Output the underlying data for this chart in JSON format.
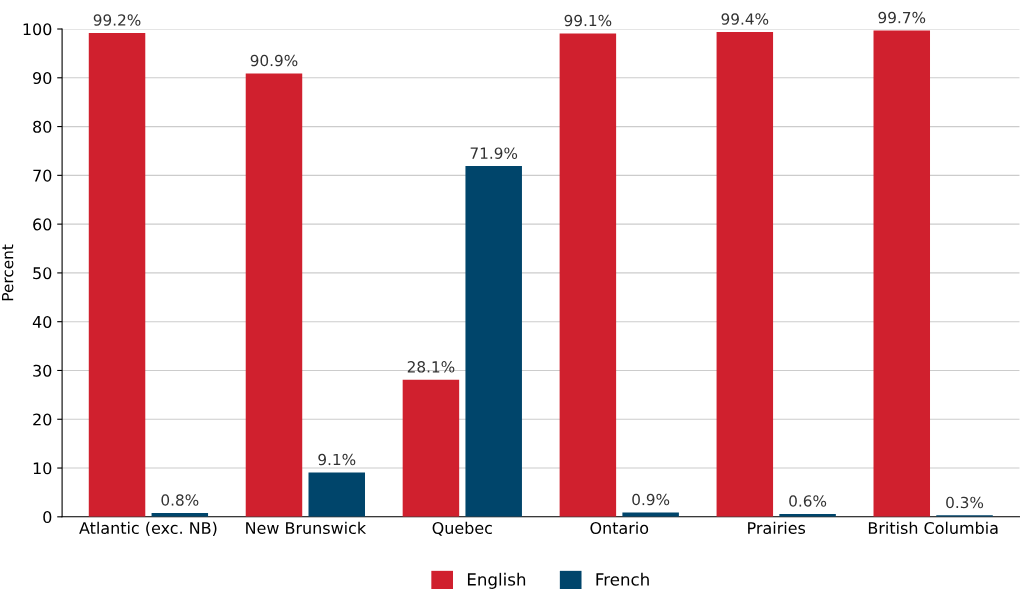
{
  "chart_data": {
    "type": "bar",
    "ylabel": "Percent",
    "categories": [
      "Atlantic (exc. NB)",
      "New Brunswick",
      "Quebec",
      "Ontario",
      "Prairies",
      "British Columbia"
    ],
    "series": [
      {
        "name": "English",
        "color": "#d0202e",
        "values": [
          99.2,
          90.9,
          28.1,
          99.1,
          99.4,
          99.7
        ],
        "value_labels": [
          "99.2%",
          "90.9%",
          "28.1%",
          "99.1%",
          "99.4%",
          "99.7%"
        ]
      },
      {
        "name": "French",
        "color": "#00456b",
        "values": [
          0.8,
          9.1,
          71.9,
          0.9,
          0.6,
          0.3
        ],
        "value_labels": [
          "0.8%",
          "9.1%",
          "71.9%",
          "0.9%",
          "0.6%",
          "0.3%"
        ]
      }
    ],
    "ylim": [
      0,
      100
    ],
    "yticks": [
      0,
      10,
      20,
      30,
      40,
      50,
      60,
      70,
      80,
      90,
      100
    ],
    "grid": "y",
    "legend": "bottom"
  }
}
